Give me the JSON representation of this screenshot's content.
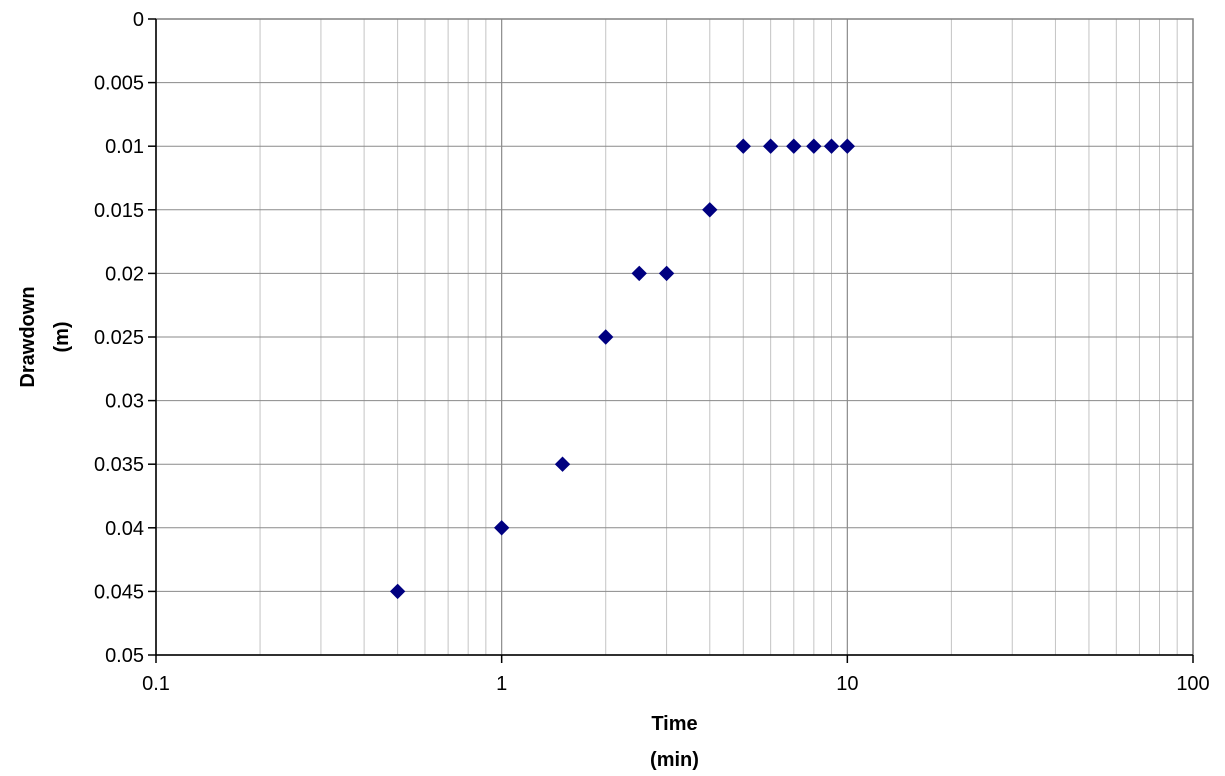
{
  "chart_data": {
    "type": "scatter",
    "xlabel": [
      "Time",
      "(min)"
    ],
    "ylabel": [
      "Drawdown",
      "(m)"
    ],
    "x_scale": "log",
    "xlim": [
      0.1,
      100
    ],
    "ylim": [
      0,
      0.05
    ],
    "y_inverted": true,
    "grid": true,
    "x_ticks": [
      0.1,
      1,
      10,
      100
    ],
    "x_tick_labels": [
      "0.1",
      "1",
      "10",
      "100"
    ],
    "y_ticks": [
      0,
      0.005,
      0.01,
      0.015,
      0.02,
      0.025,
      0.03,
      0.035,
      0.04,
      0.045,
      0.05
    ],
    "y_tick_labels": [
      "0",
      "0.005",
      "0.01",
      "0.015",
      "0.02",
      "0.025",
      "0.03",
      "0.035",
      "0.04",
      "0.045",
      "0.05"
    ],
    "series": [
      {
        "marker": "diamond",
        "color": "#000080",
        "x": [
          0.5,
          1,
          1.5,
          2,
          2.5,
          3,
          4,
          5,
          6,
          7,
          8,
          9,
          10
        ],
        "y": [
          0.045,
          0.04,
          0.035,
          0.025,
          0.02,
          0.02,
          0.015,
          0.01,
          0.01,
          0.01,
          0.01,
          0.01,
          0.01
        ]
      }
    ]
  }
}
